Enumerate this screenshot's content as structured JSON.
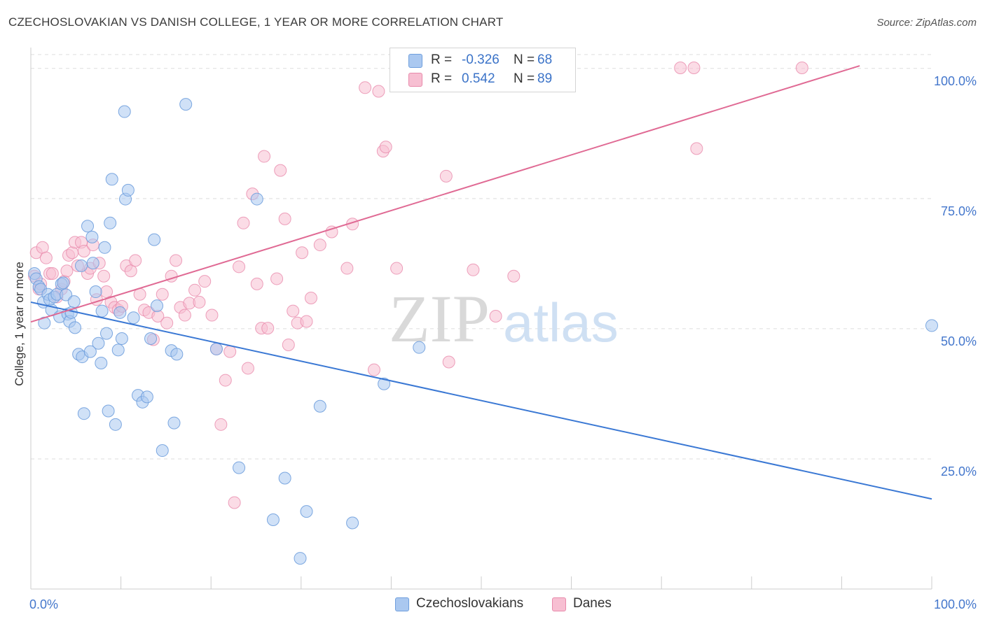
{
  "header": {
    "title": "CZECHOSLOVAKIAN VS DANISH COLLEGE, 1 YEAR OR MORE CORRELATION CHART",
    "source": "Source: ZipAtlas.com"
  },
  "watermark": {
    "zip": "ZIP",
    "atlas": "atlas"
  },
  "legend": {
    "czech": {
      "r_label": "R =",
      "r_value": "-0.326",
      "n_label": "N =",
      "n_value": "68"
    },
    "danes": {
      "r_label": "R =",
      "r_value": "0.542",
      "n_label": "N =",
      "n_value": "89"
    }
  },
  "bottom_legend": {
    "czech": "Czechoslovakians",
    "danes": "Danes"
  },
  "colors": {
    "czech_fill": "#aac8f0",
    "czech_stroke": "#6f9fdd",
    "czech_line": "#3a78d4",
    "danes_fill": "#f7bfd2",
    "danes_stroke": "#e88aab",
    "danes_line": "#e06a94",
    "tick_text": "#4477cc",
    "grid": "#dddddd"
  },
  "chart_data": {
    "type": "scatter",
    "title": "CZECHOSLOVAKIAN VS DANISH COLLEGE, 1 YEAR OR MORE CORRELATION CHART",
    "xlabel": "",
    "ylabel": "College, 1 year or more",
    "xlim": [
      0,
      100
    ],
    "ylim": [
      0,
      104
    ],
    "x_tick_labels": [
      "0.0%",
      "100.0%"
    ],
    "y_ticks": [
      25,
      50,
      75,
      100
    ],
    "y_tick_labels": [
      "25.0%",
      "50.0%",
      "75.0%",
      "100.0%"
    ],
    "grid": true,
    "series": [
      {
        "name": "Czechoslovakians",
        "trendline": {
          "x": [
            0,
            100
          ],
          "y": [
            55.1,
            17.3
          ]
        },
        "points": [
          [
            0.4,
            60.6
          ],
          [
            0.6,
            59.6
          ],
          [
            0.9,
            58.1
          ],
          [
            1.1,
            57.6
          ],
          [
            1.4,
            55.1
          ],
          [
            1.5,
            51.1
          ],
          [
            1.9,
            56.6
          ],
          [
            2.1,
            55.6
          ],
          [
            2.3,
            53.6
          ],
          [
            2.6,
            56.1
          ],
          [
            2.9,
            56.6
          ],
          [
            3.2,
            52.3
          ],
          [
            3.4,
            58.6
          ],
          [
            3.6,
            58.8
          ],
          [
            3.9,
            56.5
          ],
          [
            4.1,
            52.8
          ],
          [
            4.3,
            51.4
          ],
          [
            4.5,
            53.1
          ],
          [
            4.8,
            55.2
          ],
          [
            4.9,
            50.2
          ],
          [
            5.3,
            45.1
          ],
          [
            5.6,
            62.1
          ],
          [
            5.7,
            44.6
          ],
          [
            5.9,
            33.7
          ],
          [
            6.3,
            69.7
          ],
          [
            6.6,
            45.6
          ],
          [
            6.8,
            67.6
          ],
          [
            6.9,
            62.6
          ],
          [
            7.2,
            57.1
          ],
          [
            7.5,
            47.2
          ],
          [
            7.8,
            43.4
          ],
          [
            7.9,
            53.4
          ],
          [
            8.2,
            65.6
          ],
          [
            8.4,
            49.1
          ],
          [
            8.6,
            34.2
          ],
          [
            8.8,
            70.3
          ],
          [
            9.0,
            78.7
          ],
          [
            9.4,
            31.6
          ],
          [
            9.7,
            45.9
          ],
          [
            9.9,
            53.1
          ],
          [
            10.1,
            48.1
          ],
          [
            10.4,
            91.7
          ],
          [
            10.5,
            74.9
          ],
          [
            10.8,
            76.6
          ],
          [
            11.4,
            52.1
          ],
          [
            11.9,
            37.2
          ],
          [
            12.4,
            35.9
          ],
          [
            12.9,
            36.9
          ],
          [
            13.3,
            48.1
          ],
          [
            13.7,
            67.1
          ],
          [
            14.0,
            54.4
          ],
          [
            14.6,
            26.6
          ],
          [
            15.9,
            31.9
          ],
          [
            15.6,
            45.8
          ],
          [
            16.2,
            45.1
          ],
          [
            17.2,
            93.1
          ],
          [
            20.6,
            46.1
          ],
          [
            23.1,
            23.3
          ],
          [
            25.1,
            74.9
          ],
          [
            26.9,
            13.3
          ],
          [
            28.2,
            21.3
          ],
          [
            29.9,
            5.9
          ],
          [
            30.6,
            14.9
          ],
          [
            32.1,
            35.1
          ],
          [
            35.7,
            12.7
          ],
          [
            39.2,
            39.4
          ],
          [
            43.1,
            46.4
          ],
          [
            100.0,
            50.6
          ]
        ]
      },
      {
        "name": "Danes",
        "trendline": {
          "x": [
            0,
            92
          ],
          "y": [
            51.3,
            100.5
          ]
        },
        "points": [
          [
            0.4,
            60.1
          ],
          [
            0.6,
            64.6
          ],
          [
            0.9,
            57.6
          ],
          [
            1.1,
            58.6
          ],
          [
            1.3,
            65.6
          ],
          [
            1.7,
            63.6
          ],
          [
            2.1,
            60.6
          ],
          [
            2.4,
            60.6
          ],
          [
            2.9,
            56.1
          ],
          [
            3.4,
            57.6
          ],
          [
            3.7,
            59.1
          ],
          [
            4.0,
            61.1
          ],
          [
            4.2,
            64.1
          ],
          [
            4.6,
            64.6
          ],
          [
            4.9,
            66.6
          ],
          [
            5.2,
            62.1
          ],
          [
            5.6,
            66.6
          ],
          [
            5.9,
            64.9
          ],
          [
            6.3,
            60.6
          ],
          [
            6.6,
            61.6
          ],
          [
            6.9,
            66.1
          ],
          [
            7.3,
            55.6
          ],
          [
            7.6,
            62.6
          ],
          [
            8.1,
            60.1
          ],
          [
            8.4,
            57.1
          ],
          [
            8.9,
            55.1
          ],
          [
            9.3,
            54.1
          ],
          [
            9.7,
            53.6
          ],
          [
            10.1,
            54.3
          ],
          [
            10.6,
            62.1
          ],
          [
            11.1,
            61.1
          ],
          [
            11.6,
            63.1
          ],
          [
            12.1,
            56.6
          ],
          [
            12.6,
            53.6
          ],
          [
            13.1,
            53.1
          ],
          [
            13.6,
            47.9
          ],
          [
            14.1,
            52.4
          ],
          [
            14.6,
            56.6
          ],
          [
            15.1,
            51.1
          ],
          [
            15.6,
            60.1
          ],
          [
            16.1,
            63.1
          ],
          [
            16.6,
            54.1
          ],
          [
            17.1,
            52.6
          ],
          [
            17.6,
            54.9
          ],
          [
            18.2,
            57.4
          ],
          [
            18.7,
            55.1
          ],
          [
            19.3,
            59.1
          ],
          [
            20.1,
            52.6
          ],
          [
            20.6,
            46.1
          ],
          [
            21.1,
            31.6
          ],
          [
            21.6,
            40.1
          ],
          [
            22.1,
            45.6
          ],
          [
            22.6,
            16.6
          ],
          [
            23.1,
            61.9
          ],
          [
            23.6,
            70.3
          ],
          [
            24.1,
            42.4
          ],
          [
            24.6,
            75.9
          ],
          [
            25.1,
            58.6
          ],
          [
            25.6,
            50.1
          ],
          [
            25.9,
            83.1
          ],
          [
            26.3,
            50.1
          ],
          [
            27.3,
            59.6
          ],
          [
            27.7,
            80.4
          ],
          [
            28.2,
            71.1
          ],
          [
            28.6,
            46.9
          ],
          [
            29.1,
            53.4
          ],
          [
            29.6,
            51.1
          ],
          [
            30.1,
            64.6
          ],
          [
            30.6,
            51.4
          ],
          [
            31.1,
            55.9
          ],
          [
            32.1,
            66.1
          ],
          [
            33.4,
            68.6
          ],
          [
            35.1,
            61.6
          ],
          [
            35.7,
            70.1
          ],
          [
            37.1,
            96.3
          ],
          [
            38.1,
            42.1
          ],
          [
            38.6,
            95.6
          ],
          [
            39.1,
            84.1
          ],
          [
            39.4,
            84.9
          ],
          [
            40.6,
            61.6
          ],
          [
            46.1,
            79.3
          ],
          [
            46.4,
            43.6
          ],
          [
            49.1,
            61.3
          ],
          [
            51.6,
            52.4
          ],
          [
            53.6,
            60.1
          ],
          [
            72.1,
            100.1
          ],
          [
            73.6,
            100.1
          ],
          [
            73.9,
            84.6
          ],
          [
            85.6,
            100.1
          ]
        ]
      }
    ]
  }
}
